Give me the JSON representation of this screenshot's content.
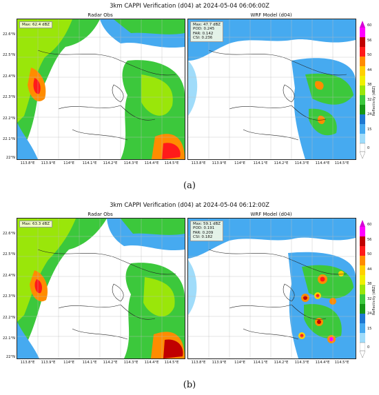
{
  "panels": [
    {
      "title": "3km CAPPI Verification (d04) at 2024-05-04 06:06:00Z",
      "left": {
        "subtitle": "Radar Obs",
        "stats": [
          "Max: 62.4 dBZ"
        ]
      },
      "right": {
        "subtitle": "WRF Model (d04)",
        "stats": [
          "Max: 47.7 dBZ",
          "POD: 0.245",
          "FAR: 0.142",
          "CSI: 0.236"
        ]
      },
      "caption": "(a)"
    },
    {
      "title": "3km CAPPI Verification (d04) at 2024-05-04 06:12:00Z",
      "left": {
        "subtitle": "Radar Obs",
        "stats": [
          "Max: 63.3 dBZ"
        ]
      },
      "right": {
        "subtitle": "WRF Model (d04)",
        "stats": [
          "Max: 59.1 dBZ",
          "POD: 0.191",
          "FAR: 0.209",
          "CSI: 0.182"
        ]
      },
      "caption": "(b)"
    }
  ],
  "lat_ticks": [
    "22.6°N",
    "22.5°N",
    "22.4°N",
    "22.3°N",
    "22.2°N",
    "22.1°N",
    "22°N"
  ],
  "lon_ticks": [
    "113.8°E",
    "113.9°E",
    "114°E",
    "114.1°E",
    "114.2°E",
    "114.3°E",
    "114.4°E",
    "114.5°E"
  ],
  "colorbar": {
    "label": "Reflectivity (dBZ)",
    "ticks": [
      "60",
      "56",
      "50",
      "44",
      "38",
      "32",
      "24",
      "15",
      "0"
    ],
    "colors": [
      "#d600d6",
      "#ff00ff",
      "#c00000",
      "#ff1a1a",
      "#ff8c00",
      "#ffd000",
      "#f0f000",
      "#9ae60a",
      "#3cc83c",
      "#169616",
      "#1e78d2",
      "#46aaf0",
      "#a0dcfa",
      "#ffffff"
    ]
  }
}
